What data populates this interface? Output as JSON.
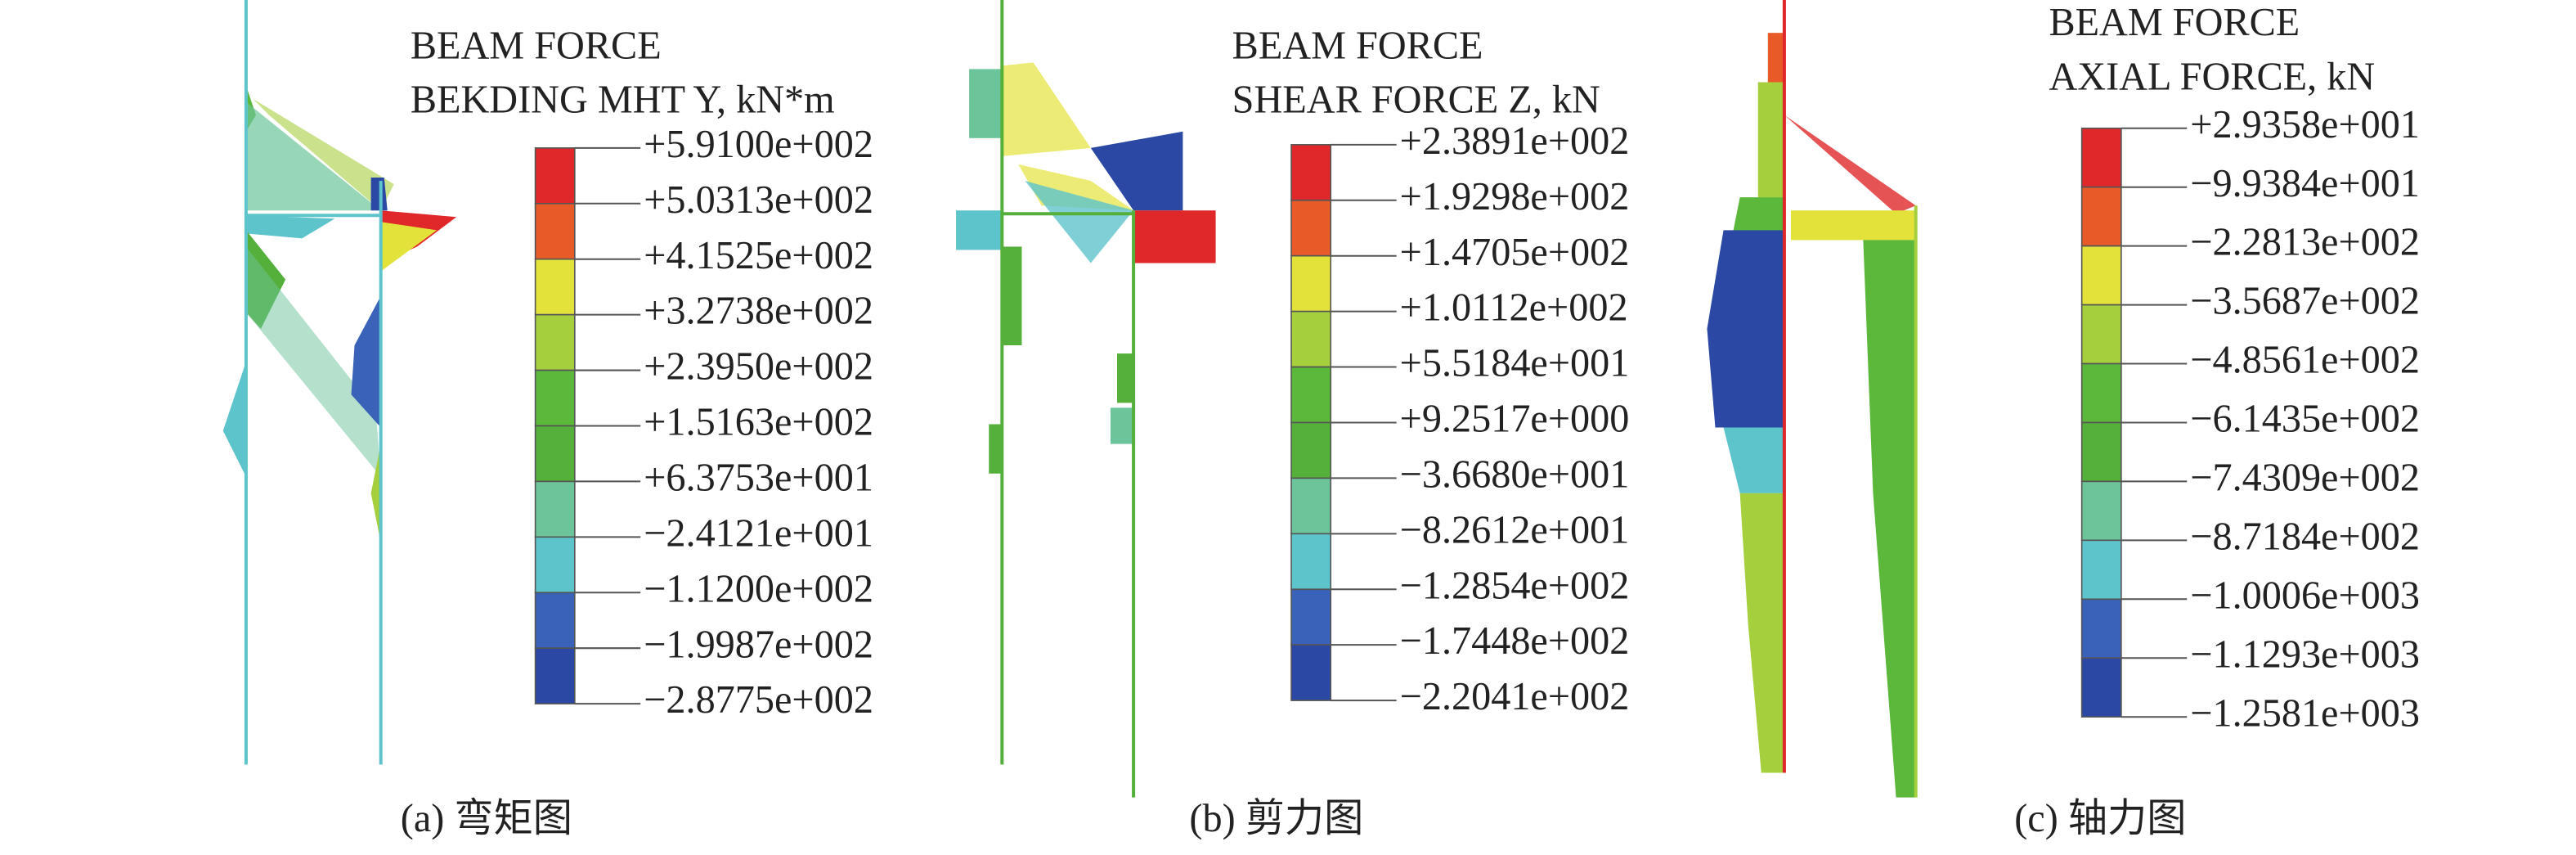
{
  "legend_colors": [
    "#e0282a",
    "#e85a28",
    "#e2e23a",
    "#a6cf3e",
    "#5cb83a",
    "#54b03a",
    "#6cc49a",
    "#5ec4cc",
    "#3a62b8",
    "#2a48a4"
  ],
  "panels": [
    {
      "title": [
        "BEAM FORCE",
        "BEKDING MHT Y, kN*m"
      ],
      "legend": [
        "+5.9100e+002",
        "+5.0313e+002",
        "+4.1525e+002",
        "+3.2738e+002",
        "+2.3950e+002",
        "+1.5163e+002",
        "+6.3753e+001",
        "−2.4121e+001",
        "−1.1200e+002",
        "−1.9987e+002",
        "−2.8775e+002"
      ],
      "caption": "(a) 弯矩图"
    },
    {
      "title": [
        "BEAM FORCE",
        "SHEAR FORCE Z, kN"
      ],
      "legend": [
        "+2.3891e+002",
        "+1.9298e+002",
        "+1.4705e+002",
        "+1.0112e+002",
        "+5.5184e+001",
        "+9.2517e+000",
        "−3.6680e+001",
        "−8.2612e+001",
        "−1.2854e+002",
        "−1.7448e+002",
        "−2.2041e+002"
      ],
      "caption": "(b) 剪力图"
    },
    {
      "title": [
        "BEAM FORCE",
        "AXIAL FORCE, kN"
      ],
      "legend": [
        "+2.9358e+001",
        "−9.9384e+001",
        "−2.2813e+002",
        "−3.5687e+002",
        "−4.8561e+002",
        "−6.1435e+002",
        "−7.4309e+002",
        "−8.7184e+002",
        "−1.0006e+003",
        "−1.1293e+003",
        "−1.2581e+003"
      ],
      "caption": "(c) 轴力图"
    }
  ]
}
